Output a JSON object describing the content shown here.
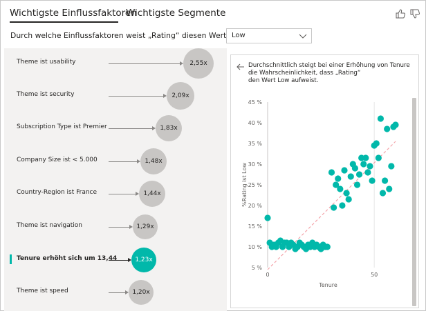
{
  "tabs": [
    {
      "label": "Wichtigste Einflussfaktoren",
      "active": true
    },
    {
      "label": "Wichtigste Segmente",
      "active": false
    }
  ],
  "feedback": {
    "like_icon": "thumbs-up-icon",
    "dislike_icon": "thumbs-down-icon"
  },
  "question": {
    "label": "Durch welche Einflussfaktoren weist „Rating“ diesen Wert auf:",
    "selected_value": "Low"
  },
  "factors": [
    {
      "label": "Theme ist usability",
      "value": "2,55x",
      "selected": false
    },
    {
      "label": "Theme ist security",
      "value": "2,09x",
      "selected": false
    },
    {
      "label": "Subscription Type ist Premier",
      "value": "1,83x",
      "selected": false
    },
    {
      "label": "Company Size ist < 5.000",
      "value": "1,48x",
      "selected": false
    },
    {
      "label": "Country-Region ist France",
      "value": "1,44x",
      "selected": false
    },
    {
      "label": "Theme ist navigation",
      "value": "1,29x",
      "selected": false
    },
    {
      "label": "Tenure erhöht sich um 13,44",
      "value": "1,23x",
      "selected": true
    },
    {
      "label": "Theme ist speed",
      "value": "1,20x",
      "selected": false
    }
  ],
  "detail": {
    "text_lines": [
      "Durchschnittlich steigt bei einer Erhöhung von Tenure",
      "die Wahrscheinlichkeit, dass „Rating“",
      "den Wert Low aufweist."
    ]
  },
  "colors": {
    "accent": "#01b8aa",
    "bubble_gray": "#c8c6c4",
    "trend_line": "#f4a3a9",
    "panel_bg": "#f3f2f1"
  },
  "chart_data": {
    "type": "scatter",
    "title": "",
    "xlabel": "Tenure",
    "ylabel": "%Rating ist Low",
    "xlim": [
      0,
      60
    ],
    "ylim": [
      5,
      45
    ],
    "x_ticks": [
      0,
      50
    ],
    "x_tick_labels": [
      "0",
      "50"
    ],
    "y_ticks": [
      5,
      10,
      15,
      20,
      25,
      30,
      35,
      40,
      45
    ],
    "y_tick_labels": [
      "5 %",
      "10 %",
      "15 %",
      "20 %",
      "25 %",
      "30 %",
      "35 %",
      "40 %",
      "45 %"
    ],
    "grid": "vertical",
    "trend_line": {
      "x": [
        0,
        60
      ],
      "y": [
        4.5,
        35.5
      ],
      "style": "dashed"
    },
    "points": [
      {
        "x": 0,
        "y": 17
      },
      {
        "x": 1,
        "y": 11
      },
      {
        "x": 2,
        "y": 10
      },
      {
        "x": 3,
        "y": 10.5
      },
      {
        "x": 4,
        "y": 10
      },
      {
        "x": 5,
        "y": 11
      },
      {
        "x": 6,
        "y": 11.5
      },
      {
        "x": 7,
        "y": 10
      },
      {
        "x": 8,
        "y": 11
      },
      {
        "x": 9,
        "y": 11
      },
      {
        "x": 10,
        "y": 10
      },
      {
        "x": 11,
        "y": 11
      },
      {
        "x": 12,
        "y": 10.5
      },
      {
        "x": 13,
        "y": 9.5
      },
      {
        "x": 14,
        "y": 10
      },
      {
        "x": 15,
        "y": 11
      },
      {
        "x": 16,
        "y": 10.5
      },
      {
        "x": 17,
        "y": 10
      },
      {
        "x": 18,
        "y": 9.5
      },
      {
        "x": 19,
        "y": 10.5
      },
      {
        "x": 20,
        "y": 10
      },
      {
        "x": 21,
        "y": 11
      },
      {
        "x": 22,
        "y": 10
      },
      {
        "x": 23,
        "y": 10.5
      },
      {
        "x": 24,
        "y": 10
      },
      {
        "x": 25,
        "y": 9.5
      },
      {
        "x": 26,
        "y": 10.5
      },
      {
        "x": 27,
        "y": 10
      },
      {
        "x": 28,
        "y": 10
      },
      {
        "x": 30,
        "y": 28
      },
      {
        "x": 31,
        "y": 19.5
      },
      {
        "x": 32,
        "y": 25
      },
      {
        "x": 33,
        "y": 26.5
      },
      {
        "x": 34,
        "y": 24
      },
      {
        "x": 35,
        "y": 20
      },
      {
        "x": 36,
        "y": 28.5
      },
      {
        "x": 37,
        "y": 23
      },
      {
        "x": 38,
        "y": 21.5
      },
      {
        "x": 39,
        "y": 27
      },
      {
        "x": 40,
        "y": 30
      },
      {
        "x": 41,
        "y": 29
      },
      {
        "x": 42,
        "y": 25
      },
      {
        "x": 43,
        "y": 27.5
      },
      {
        "x": 44,
        "y": 31.5
      },
      {
        "x": 45,
        "y": 30
      },
      {
        "x": 46,
        "y": 31.5
      },
      {
        "x": 47,
        "y": 28
      },
      {
        "x": 48,
        "y": 29.5
      },
      {
        "x": 49,
        "y": 26
      },
      {
        "x": 50,
        "y": 34.5
      },
      {
        "x": 51,
        "y": 35
      },
      {
        "x": 52,
        "y": 31.5
      },
      {
        "x": 53,
        "y": 41
      },
      {
        "x": 54,
        "y": 23
      },
      {
        "x": 55,
        "y": 26
      },
      {
        "x": 56,
        "y": 38.5
      },
      {
        "x": 57,
        "y": 24
      },
      {
        "x": 58,
        "y": 29.5
      },
      {
        "x": 59,
        "y": 39
      },
      {
        "x": 60,
        "y": 39.5
      }
    ]
  }
}
